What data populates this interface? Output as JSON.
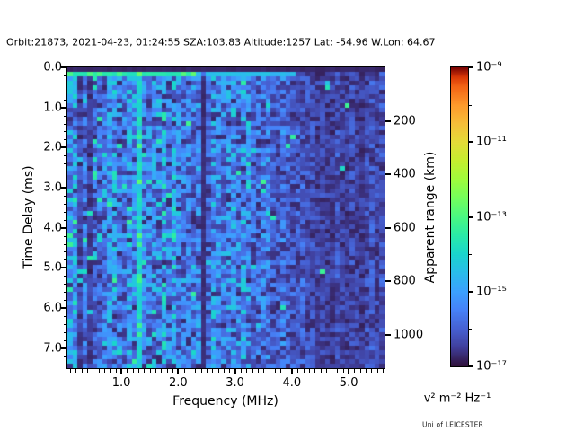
{
  "figure": {
    "title": "Orbit:21873, 2021-04-23, 01:24:55 SZA:103.83 Altitude:1257 Lat: -54.96 W.Lon: 64.67",
    "credit": "Uni of LEICESTER",
    "background": "#ffffff"
  },
  "chart_data": {
    "type": "heatmap",
    "title": "Orbit:21873, 2021-04-23, 01:24:55 SZA:103.83 Altitude:1257 Lat: -54.96 W.Lon: 64.67",
    "xlabel": "Frequency (MHz)",
    "ylabel": "Time Delay (ms)",
    "y2label": "Apparent range (km)",
    "colorbar_label": "v² m⁻² Hz⁻¹",
    "colormap": "turbo",
    "legend": "colorbar-right",
    "grid_lines": "off",
    "x_range_mhz": [
      0.05,
      5.63
    ],
    "y_range_ms": [
      0.0,
      7.5
    ],
    "x_major_ticks": [
      {
        "value": 1.0,
        "label": "1.0"
      },
      {
        "value": 2.0,
        "label": "2.0"
      },
      {
        "value": 3.0,
        "label": "3.0"
      },
      {
        "value": 4.0,
        "label": "4.0"
      },
      {
        "value": 5.0,
        "label": "5.0"
      }
    ],
    "x_minor_tick_step_mhz": 0.1,
    "y_major_ticks": [
      {
        "value": 0.0,
        "label": "0.0"
      },
      {
        "value": 1.0,
        "label": "1.0"
      },
      {
        "value": 2.0,
        "label": "2.0"
      },
      {
        "value": 3.0,
        "label": "3.0"
      },
      {
        "value": 4.0,
        "label": "4.0"
      },
      {
        "value": 5.0,
        "label": "5.0"
      },
      {
        "value": 6.0,
        "label": "6.0"
      },
      {
        "value": 7.0,
        "label": "7.0"
      }
    ],
    "y_minor_tick_step_ms": 0.2,
    "y2_ticks": [
      {
        "value": 200,
        "label": "200"
      },
      {
        "value": 400,
        "label": "400"
      },
      {
        "value": 600,
        "label": "600"
      },
      {
        "value": 800,
        "label": "800"
      },
      {
        "value": 1000,
        "label": "1000"
      }
    ],
    "y2_km_per_ms": 149.9,
    "colorbar_range_exp": [
      -9,
      -17
    ],
    "colorbar_ticks": [
      {
        "exp": -9,
        "label": "10⁻⁹"
      },
      {
        "exp": -11,
        "label": "10⁻¹¹"
      },
      {
        "exp": -13,
        "label": "10⁻¹³"
      },
      {
        "exp": -15,
        "label": "10⁻¹⁵"
      },
      {
        "exp": -17,
        "label": "10⁻¹⁷"
      }
    ],
    "colorbar_minor_exp": [
      -10,
      -12,
      -14,
      -16
    ],
    "grid": {
      "cols": 64,
      "rows": 67,
      "seed": 7
    },
    "features": {
      "dark_first_row_ms": 0.08,
      "surface_echo_row_ms": 0.17,
      "surface_echo_cyan_max_mhz": 2.33,
      "surface_echo_blue_max_mhz": 4.1,
      "cyan_interference_line_mhz": 1.35,
      "dark_absorption_line_mhz": 2.41,
      "dark_low_freq_bands_mhz": [
        [
          0.22,
          0.33
        ],
        [
          0.41,
          0.5
        ]
      ],
      "bright_left_edge_max_mhz": 0.2,
      "noise_fade_start_mhz": 3.5,
      "dark_high_freq_min_mhz": 4.3,
      "mean_level_t": {
        "low_freq": 0.17,
        "mid_freq": 0.15,
        "high_freq": 0.068,
        "bright_edge": 0.24,
        "dark_band": 0.055,
        "band_gap": 0.12
      }
    }
  }
}
